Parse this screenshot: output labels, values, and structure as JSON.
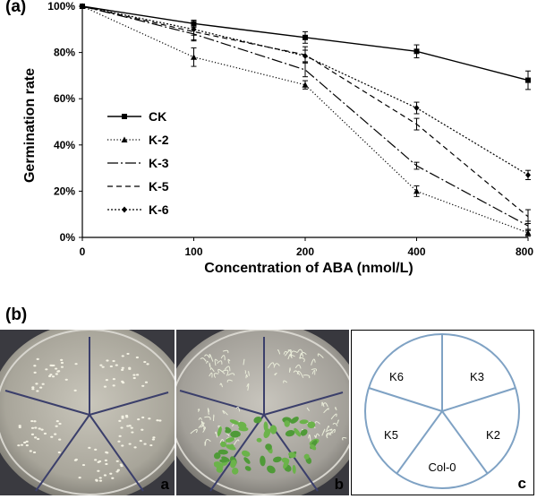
{
  "panel_a_label": "(a)",
  "panel_b_label": "(b)",
  "chart_data": {
    "type": "line",
    "title": "",
    "xlabel": "Concentration of ABA (nmol/L)",
    "ylabel": "Germination rate",
    "categories": [
      "0",
      "100",
      "200",
      "400",
      "800"
    ],
    "y_ticks": [
      "0%",
      "20%",
      "40%",
      "60%",
      "80%",
      "100%"
    ],
    "ylim": [
      0,
      100
    ],
    "legend_position": "middle-left",
    "series": [
      {
        "name": "CK",
        "values": [
          100,
          92.5,
          86.5,
          80.5,
          68
        ],
        "errors": [
          0.5,
          1.5,
          2.5,
          2.8,
          4
        ],
        "dash": "",
        "marker": "square"
      },
      {
        "name": "K-2",
        "values": [
          100,
          78,
          66,
          20,
          2
        ],
        "errors": [
          0.5,
          4,
          1.8,
          2.3,
          1.5
        ],
        "dash": "1.2,2.3",
        "marker": "triangle"
      },
      {
        "name": "K-3",
        "values": [
          100,
          88,
          72.5,
          31,
          5
        ],
        "errors": [
          0.5,
          3,
          3,
          1.5,
          2
        ],
        "dash": "12,3,2,3",
        "marker": "none"
      },
      {
        "name": "K-5",
        "values": [
          100,
          89,
          79,
          49,
          9
        ],
        "errors": [
          0.5,
          3.5,
          3.5,
          2.5,
          3
        ],
        "dash": "6,4",
        "marker": "none"
      },
      {
        "name": "K-6",
        "values": [
          100,
          90,
          78.5,
          56,
          27
        ],
        "errors": [
          0.5,
          2.5,
          2.5,
          2.5,
          2
        ],
        "dash": "2,2",
        "marker": "diamond"
      }
    ]
  },
  "photos": {
    "a_label": "a",
    "b_label": "b",
    "c_label": "c"
  },
  "diagram": {
    "sections": [
      "K6",
      "K3",
      "K2",
      "Col-0",
      "K5"
    ]
  }
}
